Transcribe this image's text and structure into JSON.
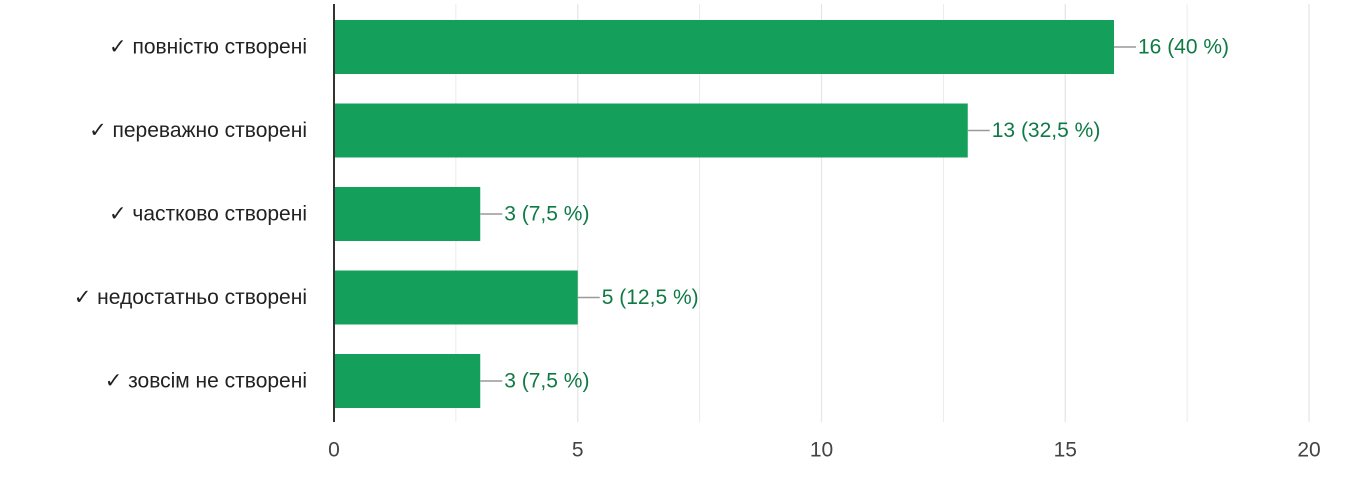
{
  "chart_data": {
    "type": "bar",
    "orientation": "horizontal",
    "categories": [
      "✓ повністю створені",
      "✓ переважно створені",
      "✓ частково створені",
      "✓ недостатньо створені",
      "✓ зовсім не створені"
    ],
    "values": [
      16,
      13,
      3,
      5,
      3
    ],
    "data_labels": [
      "16 (40 %)",
      "13 (32,5 %)",
      "3 (7,5 %)",
      "5 (12,5 %)",
      "3 (7,5 %)"
    ],
    "xlim": [
      0,
      20
    ],
    "xticks": [
      0,
      5,
      10,
      15,
      20
    ],
    "tick_labels": [
      "0",
      "5",
      "10",
      "15",
      "20"
    ],
    "grid": true,
    "title": "",
    "xlabel": "",
    "ylabel": "",
    "colors": {
      "bar": "#14a05a",
      "label": "#0f7a45",
      "grid": "#e6e6e6",
      "axis": "#333333",
      "leader": "#999999"
    }
  }
}
